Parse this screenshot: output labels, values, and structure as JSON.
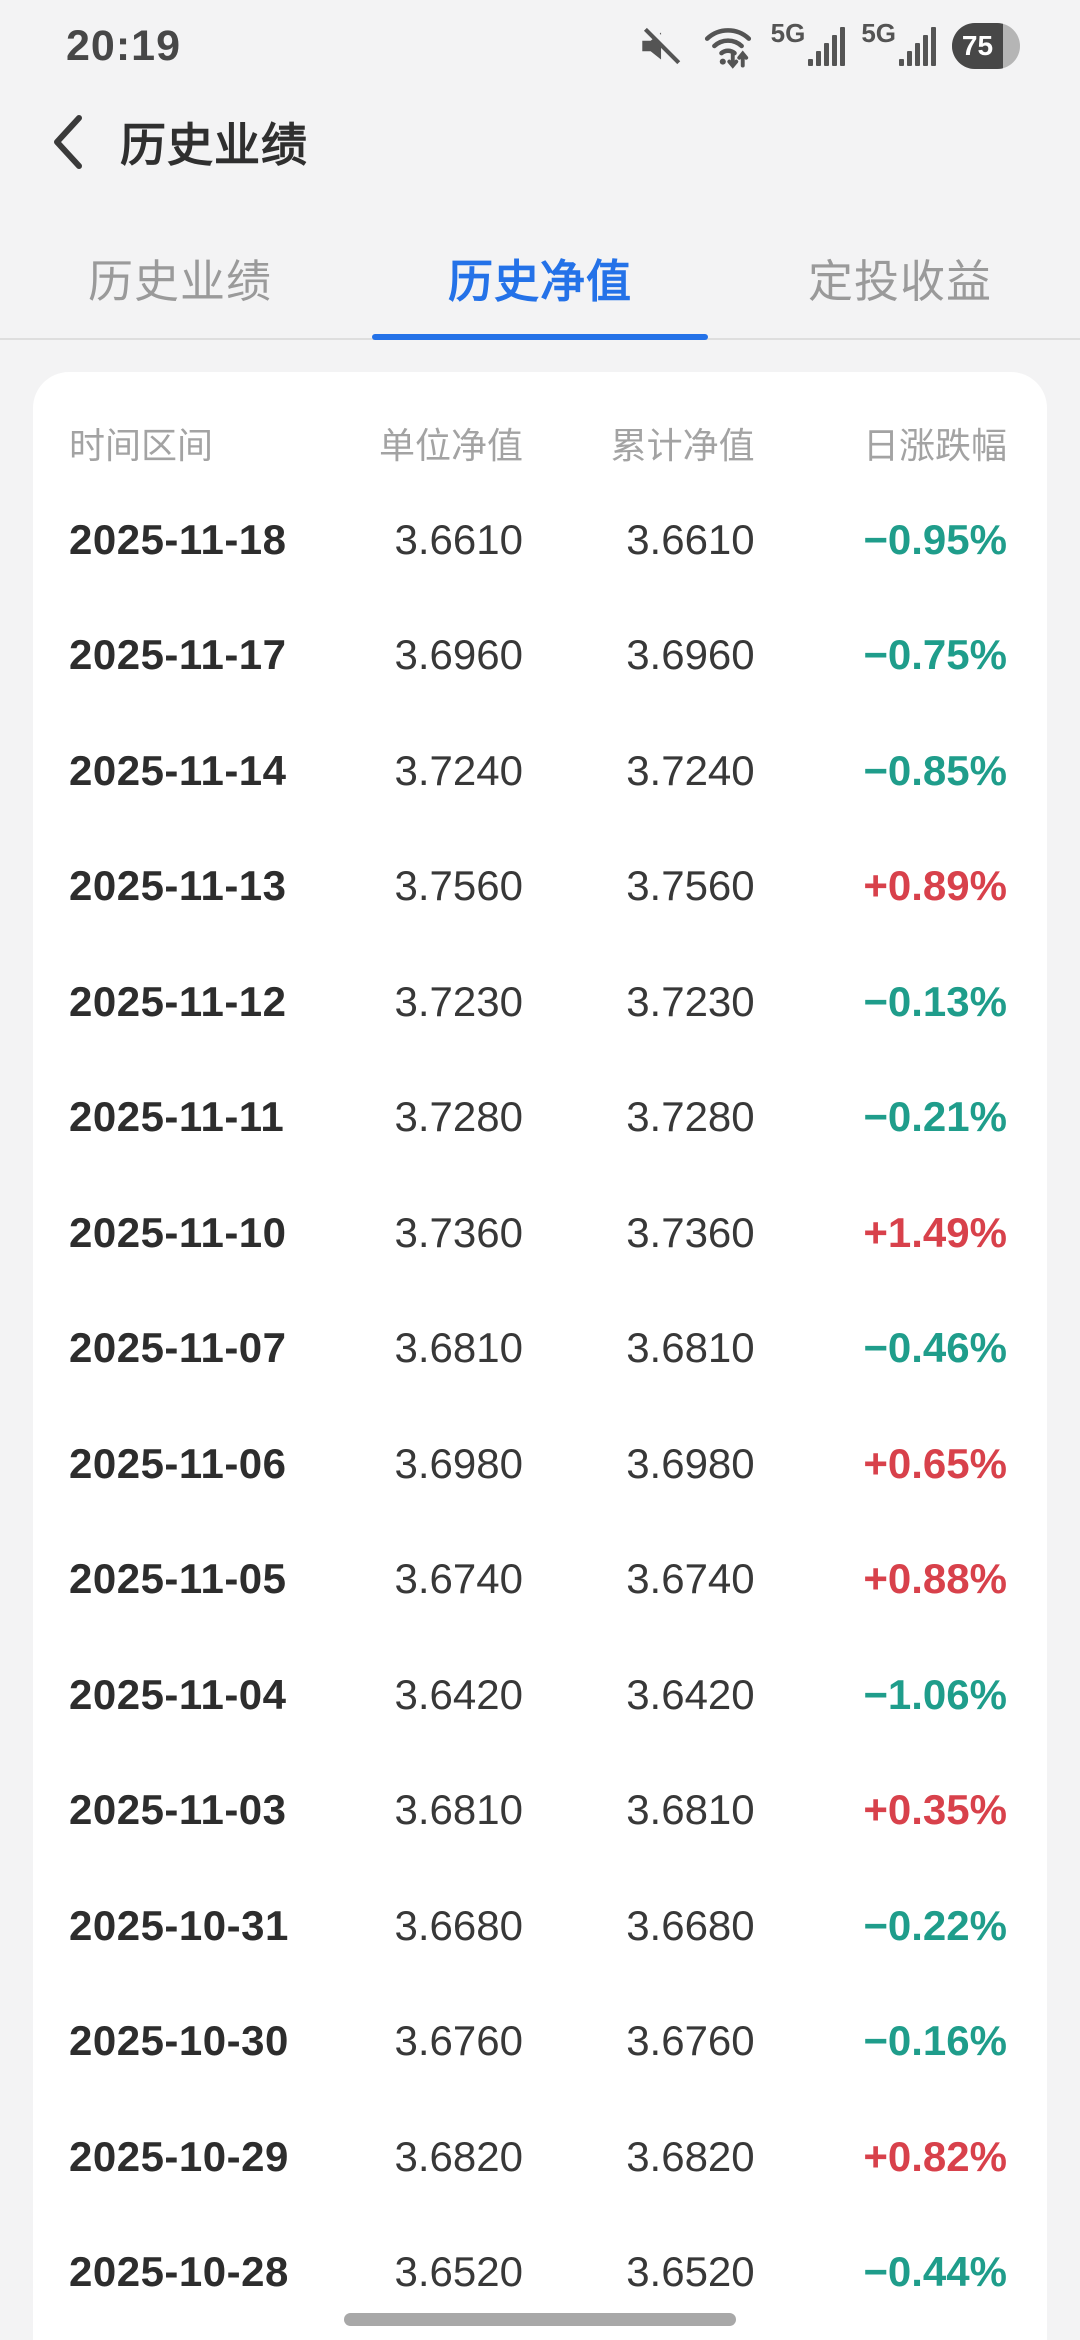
{
  "status_bar": {
    "time": "20:19",
    "battery_percent": "75",
    "network_label": "5G"
  },
  "nav": {
    "title": "历史业绩"
  },
  "tabs": [
    {
      "label": "历史业绩",
      "active": false
    },
    {
      "label": "历史净值",
      "active": true
    },
    {
      "label": "定投收益",
      "active": false
    }
  ],
  "table": {
    "columns": [
      "时间区间",
      "单位净值",
      "累计净值",
      "日涨跌幅"
    ],
    "rows": [
      {
        "date": "2025-11-18",
        "unit_nav": "3.6610",
        "cum_nav": "3.6610",
        "change": "−0.95%",
        "direction": "down"
      },
      {
        "date": "2025-11-17",
        "unit_nav": "3.6960",
        "cum_nav": "3.6960",
        "change": "−0.75%",
        "direction": "down"
      },
      {
        "date": "2025-11-14",
        "unit_nav": "3.7240",
        "cum_nav": "3.7240",
        "change": "−0.85%",
        "direction": "down"
      },
      {
        "date": "2025-11-13",
        "unit_nav": "3.7560",
        "cum_nav": "3.7560",
        "change": "+0.89%",
        "direction": "up"
      },
      {
        "date": "2025-11-12",
        "unit_nav": "3.7230",
        "cum_nav": "3.7230",
        "change": "−0.13%",
        "direction": "down"
      },
      {
        "date": "2025-11-11",
        "unit_nav": "3.7280",
        "cum_nav": "3.7280",
        "change": "−0.21%",
        "direction": "down"
      },
      {
        "date": "2025-11-10",
        "unit_nav": "3.7360",
        "cum_nav": "3.7360",
        "change": "+1.49%",
        "direction": "up"
      },
      {
        "date": "2025-11-07",
        "unit_nav": "3.6810",
        "cum_nav": "3.6810",
        "change": "−0.46%",
        "direction": "down"
      },
      {
        "date": "2025-11-06",
        "unit_nav": "3.6980",
        "cum_nav": "3.6980",
        "change": "+0.65%",
        "direction": "up"
      },
      {
        "date": "2025-11-05",
        "unit_nav": "3.6740",
        "cum_nav": "3.6740",
        "change": "+0.88%",
        "direction": "up"
      },
      {
        "date": "2025-11-04",
        "unit_nav": "3.6420",
        "cum_nav": "3.6420",
        "change": "−1.06%",
        "direction": "down"
      },
      {
        "date": "2025-11-03",
        "unit_nav": "3.6810",
        "cum_nav": "3.6810",
        "change": "+0.35%",
        "direction": "up"
      },
      {
        "date": "2025-10-31",
        "unit_nav": "3.6680",
        "cum_nav": "3.6680",
        "change": "−0.22%",
        "direction": "down"
      },
      {
        "date": "2025-10-30",
        "unit_nav": "3.6760",
        "cum_nav": "3.6760",
        "change": "−0.16%",
        "direction": "down"
      },
      {
        "date": "2025-10-29",
        "unit_nav": "3.6820",
        "cum_nav": "3.6820",
        "change": "+0.82%",
        "direction": "up"
      },
      {
        "date": "2025-10-28",
        "unit_nav": "3.6520",
        "cum_nav": "3.6520",
        "change": "−0.44%",
        "direction": "down"
      }
    ]
  },
  "colors": {
    "up": "#d8414b",
    "down": "#1f9d8b",
    "accent": "#2472e8"
  }
}
